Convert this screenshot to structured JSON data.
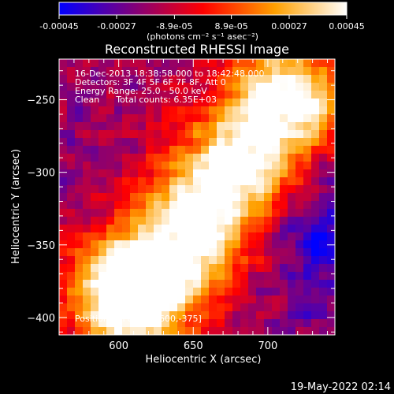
{
  "colorbar": {
    "ticks": [
      "-0.00045",
      "-0.00027",
      "-8.9e-05",
      "8.9e-05",
      "0.00027",
      "0.00045"
    ],
    "tick_values": [
      -0.00045,
      -0.00027,
      -8.9e-05,
      8.9e-05,
      0.00027,
      0.00045
    ],
    "range": [
      -0.00045,
      0.00045
    ],
    "units": "(photons cm⁻² s⁻¹ asec⁻²)"
  },
  "chart_data": {
    "type": "heatmap",
    "title": "Reconstructed RHESSI Image",
    "xlabel": "Heliocentric X (arcsec)",
    "ylabel": "Heliocentric Y (arcsec)",
    "xlim": [
      560,
      745
    ],
    "ylim": [
      -412,
      -222
    ],
    "xticks": [
      600,
      650,
      700
    ],
    "xtick_labels": [
      "600",
      "650",
      "700"
    ],
    "yticks": [
      -250,
      -300,
      -350,
      -400
    ],
    "ytick_labels": [
      "−250",
      "−300",
      "−350",
      "−400"
    ],
    "grid": false,
    "colormap": [
      "#0000ff",
      "#7b0080",
      "#ff0000",
      "#ffa000",
      "#ffffff"
    ],
    "peak": [
      600,
      -375
    ],
    "annotations": [
      "16-Dec-2013 18:38:58.000 to 18:42:48.000",
      "Detectors: 3F 4F 5F 6F 7F 8F, Att 0",
      "Energy Range: 25.0 - 50.0 keV",
      "Clean      Total counts: 6.35E+03",
      "Position of Peak = [600,-375]"
    ]
  },
  "footer": {
    "timestamp": "19-May-2022 02:14"
  }
}
